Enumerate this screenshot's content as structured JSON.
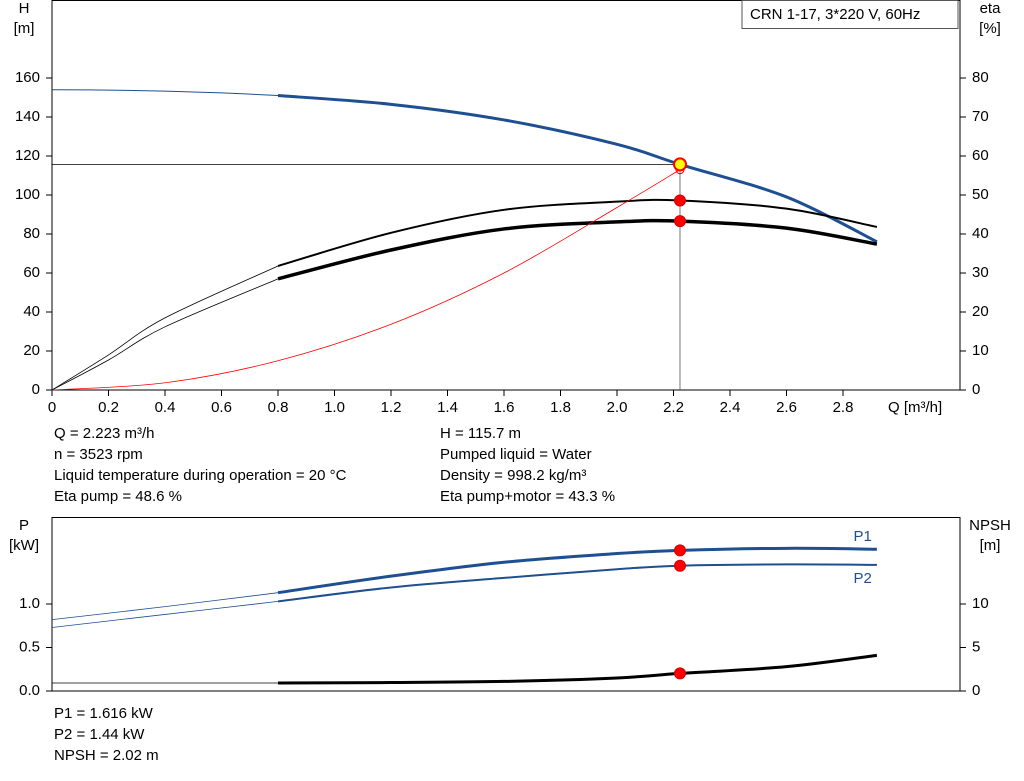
{
  "chart_data": [
    {
      "type": "line",
      "label_box": "CRN 1-17, 3*220 V, 60Hz",
      "ylabel": "H",
      "yunit": "[m]",
      "y2label": "eta",
      "y2unit": "[%]",
      "xlabel": "Q [m³/h]",
      "xlim": [
        0,
        3.2
      ],
      "xticks": [
        0,
        0.2,
        0.4,
        0.6,
        0.8,
        {
          "value": 1,
          "label": "1.0"
        },
        1.2,
        1.4,
        1.6,
        1.8,
        {
          "value": 2,
          "label": "2.0"
        },
        2.2,
        2.4,
        2.6,
        2.8
      ],
      "ylim": [
        0,
        200
      ],
      "yticks": [
        0,
        20,
        40,
        60,
        80,
        100,
        120,
        140,
        160
      ],
      "y2lim": [
        0,
        100
      ],
      "y2ticks": [
        0,
        10,
        20,
        30,
        40,
        50,
        60,
        70,
        80
      ],
      "crosshair": true,
      "series": [
        {
          "axis": "y",
          "color": "#1d4f91",
          "width": 1,
          "x": [
            0,
            0.2,
            0.4,
            0.6,
            0.8
          ],
          "values": [
            154,
            153.8,
            153.3,
            152.4,
            151
          ]
        },
        {
          "axis": "y",
          "color": "#1d4f91",
          "width": 3,
          "x": [
            0.8,
            1.2,
            1.6,
            2.0,
            2.223,
            2.6,
            2.92
          ],
          "values": [
            151,
            146.5,
            138.5,
            126,
            115.7,
            99,
            76
          ]
        },
        {
          "axis": "y2",
          "color": "#000000",
          "width": 0.8,
          "x": [
            0,
            0.2,
            0.4,
            0.8
          ],
          "values": [
            0,
            9,
            18.5,
            31.8
          ]
        },
        {
          "axis": "y2",
          "color": "#000000",
          "width": 2,
          "x": [
            0.8,
            1.2,
            1.6,
            2.0,
            2.223,
            2.6,
            2.92
          ],
          "values": [
            31.8,
            40.3,
            46.2,
            48.3,
            48.6,
            46.5,
            41.8
          ]
        },
        {
          "axis": "y2",
          "color": "#000000",
          "width": 0.8,
          "x": [
            0,
            0.2,
            0.4,
            0.8
          ],
          "values": [
            0,
            7.7,
            16.2,
            28.5
          ]
        },
        {
          "axis": "y2",
          "color": "#000000",
          "width": 3.5,
          "x": [
            0.8,
            1.2,
            1.6,
            2.0,
            2.223,
            2.6,
            2.92
          ],
          "values": [
            28.5,
            35.9,
            41.3,
            43.1,
            43.3,
            41.5,
            37.4
          ]
        },
        {
          "axis": "y",
          "color": "#ff0000",
          "width": 0.8,
          "end_marker": "open",
          "x": [
            0,
            0.4,
            0.8,
            1.2,
            1.6,
            2.0,
            2.223
          ],
          "values": [
            0,
            3.7,
            15,
            33.7,
            60,
            93.6,
            113
          ]
        }
      ],
      "markers": [
        {
          "axis": "y",
          "x": 2.223,
          "value": 115.7,
          "color": "#ffff00"
        },
        {
          "axis": "y2",
          "x": 2.223,
          "value": 48.6,
          "color": "#ff0000"
        },
        {
          "axis": "y2",
          "x": 2.223,
          "value": 43.3,
          "color": "#ff0000"
        }
      ],
      "info": [
        [
          "Q = 2.223 m³/h",
          "n = 3523 rpm",
          "Liquid temperature during operation = 20 °C",
          "Eta pump = 48.6 %"
        ],
        [
          "H = 115.7 m",
          "Pumped liquid = Water",
          "Density = 998.2 kg/m³",
          "Eta pump+motor = 43.3 %"
        ]
      ]
    },
    {
      "type": "line",
      "ylabel": "P",
      "yunit": "[kW]",
      "y2label": "NPSH",
      "y2unit": "[m]",
      "xlim": [
        0,
        3.2
      ],
      "ylim": [
        0,
        2
      ],
      "yticks": [
        {
          "value": 0,
          "label": "0.0"
        },
        {
          "value": 0.5,
          "label": "0.5"
        },
        {
          "value": 1,
          "label": "1.0"
        }
      ],
      "y2lim": [
        0,
        20
      ],
      "y2ticks": [
        0,
        5,
        10
      ],
      "series": [
        {
          "axis": "y",
          "color": "#1d4f91",
          "width": 0.8,
          "x": [
            0,
            0.4,
            0.8
          ],
          "values": [
            0.82,
            0.97,
            1.13
          ]
        },
        {
          "axis": "y",
          "name": "P1",
          "label_position": "above",
          "color": "#1d4f91",
          "width": 3,
          "x": [
            0.8,
            1.2,
            1.6,
            2.0,
            2.223,
            2.6,
            2.92
          ],
          "values": [
            1.13,
            1.32,
            1.48,
            1.58,
            1.616,
            1.64,
            1.63
          ]
        },
        {
          "axis": "y",
          "color": "#1d4f91",
          "width": 0.8,
          "x": [
            0,
            0.4,
            0.8
          ],
          "values": [
            0.73,
            0.88,
            1.03
          ]
        },
        {
          "axis": "y",
          "name": "P2",
          "label_position": "below",
          "color": "#1d4f91",
          "width": 2,
          "x": [
            0.8,
            1.2,
            1.6,
            2.0,
            2.223,
            2.6,
            2.92
          ],
          "values": [
            1.03,
            1.19,
            1.3,
            1.4,
            1.44,
            1.455,
            1.45
          ]
        },
        {
          "axis": "y2",
          "color": "#000000",
          "width": 0.8,
          "x": [
            0,
            0.4,
            0.8
          ],
          "values": [
            0.92,
            0.92,
            0.92
          ]
        },
        {
          "axis": "y2",
          "color": "#000000",
          "width": 3,
          "x": [
            0.8,
            1.2,
            1.6,
            2.0,
            2.223,
            2.6,
            2.92
          ],
          "values": [
            0.92,
            0.97,
            1.1,
            1.5,
            2.02,
            2.8,
            4.1
          ]
        }
      ],
      "markers": [
        {
          "axis": "y",
          "x": 2.223,
          "value": 1.616,
          "color": "#ff0000"
        },
        {
          "axis": "y",
          "x": 2.223,
          "value": 1.44,
          "color": "#ff0000"
        },
        {
          "axis": "y2",
          "x": 2.223,
          "value": 2.02,
          "color": "#ff0000"
        }
      ],
      "info": [
        [
          "P1 = 1.616 kW",
          "P2 = 1.44 kW",
          "NPSH = 2.02 m"
        ]
      ]
    }
  ]
}
